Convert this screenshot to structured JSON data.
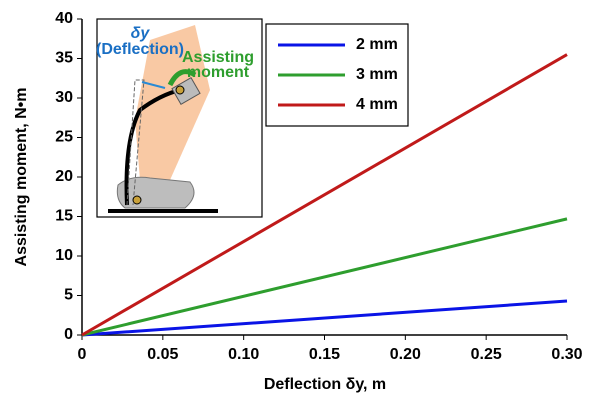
{
  "chart_data": {
    "type": "line",
    "xlabel": "Deflection δy, m",
    "ylabel": "Assisting moment, N•m",
    "x": [
      0,
      0.3
    ],
    "series": [
      {
        "name": "2 mm",
        "color": "#0a14e6",
        "values": [
          0,
          4.3
        ]
      },
      {
        "name": "3 mm",
        "color": "#2e9e2e",
        "values": [
          0,
          14.7
        ]
      },
      {
        "name": "4 mm",
        "color": "#c01a1a",
        "values": [
          0,
          35.5
        ]
      }
    ],
    "xlim": [
      0,
      0.3
    ],
    "xticks": [
      0,
      0.05,
      {
        "value": 0.1,
        "label": "0.10"
      },
      0.15,
      {
        "value": 0.2,
        "label": "0.20"
      },
      0.25,
      {
        "value": 0.3,
        "label": "0.30"
      }
    ],
    "ylim": [
      0,
      40
    ],
    "yticks": [
      0,
      5,
      10,
      15,
      20,
      25,
      30,
      35,
      40
    ],
    "grid": false,
    "legend": "top-center",
    "inset": {
      "deflection_symbol": "δy",
      "deflection_label": "(Deflection)",
      "moment_label_1": "Assisting",
      "moment_label_2": "moment"
    }
  }
}
